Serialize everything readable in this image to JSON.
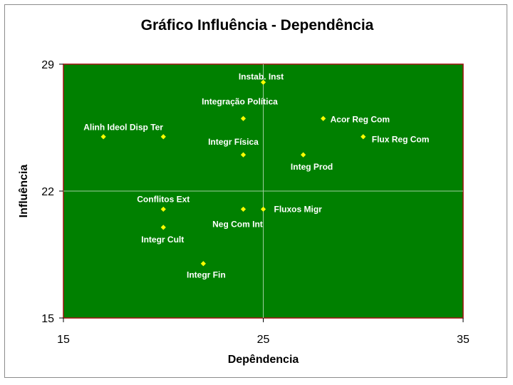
{
  "chart_data": {
    "type": "scatter",
    "title": "Gráfico Influência - Dependência",
    "xlabel": "Depêndencia",
    "ylabel": "Influência",
    "xlim": [
      15,
      35
    ],
    "ylim": [
      15,
      29
    ],
    "x_ticks": [
      "15",
      "25",
      "35"
    ],
    "y_ticks": [
      "29",
      "22",
      "15"
    ],
    "grid": "median lines at x=25 and y=22",
    "legend": "none",
    "colors": {
      "plot_background": "#008000",
      "plot_border": "#a01010",
      "marker": "#ffff00",
      "label_text": "#ffffff",
      "grid_line": "#9fce9f"
    },
    "points": [
      {
        "label": "Instab. Inst",
        "x": 25,
        "y": 28
      },
      {
        "label": "Integração Política",
        "x": 24,
        "y": 26
      },
      {
        "label": "Acor Reg Com",
        "x": 28,
        "y": 26
      },
      {
        "label": "Alinh Ideol Disp Ter",
        "x": 17,
        "y": 25
      },
      {
        "label": "",
        "x": 20,
        "y": 25
      },
      {
        "label": "Flux Reg Com",
        "x": 30,
        "y": 25
      },
      {
        "label": "Integr Física",
        "x": 24,
        "y": 24
      },
      {
        "label": "Integ Prod",
        "x": 27,
        "y": 24
      },
      {
        "label": "Conflitos Ext",
        "x": 20,
        "y": 21
      },
      {
        "label": "Neg Com Int",
        "x": 24,
        "y": 21
      },
      {
        "label": "Fluxos Migr",
        "x": 25,
        "y": 21
      },
      {
        "label": "Integr Cult",
        "x": 20,
        "y": 20
      },
      {
        "label": "Integr Fin",
        "x": 22,
        "y": 18
      }
    ]
  }
}
